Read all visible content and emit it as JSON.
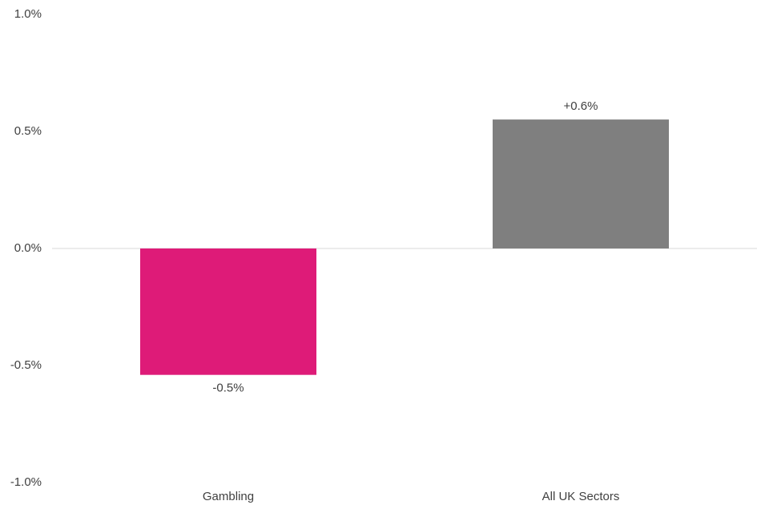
{
  "chart_data": {
    "type": "bar",
    "categories": [
      "Gambling",
      "All UK Sectors"
    ],
    "values": [
      -0.54,
      0.551
    ],
    "value_labels": [
      "-0.5%",
      "+0.6%"
    ],
    "colors": [
      "#de1b78",
      "#7f7f7f"
    ],
    "ylim": [
      -1,
      1
    ],
    "yticks": [
      {
        "value": -1,
        "label": "-1.0%"
      },
      {
        "value": -0.5,
        "label": "-0.5%"
      },
      {
        "value": 0,
        "label": "0.0%"
      },
      {
        "value": 0.5,
        "label": "0.5%"
      },
      {
        "value": 1,
        "label": "1.0%"
      }
    ],
    "grid": false
  }
}
